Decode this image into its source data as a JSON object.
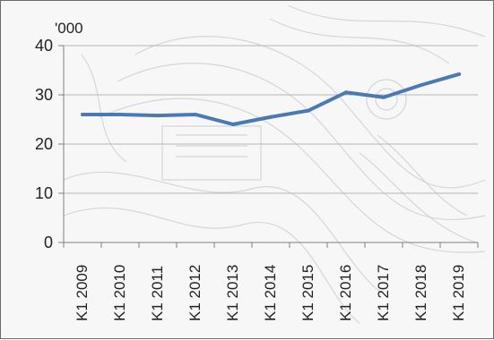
{
  "chart_data": {
    "type": "line",
    "title": "",
    "unit_label": "'000",
    "xlabel": "",
    "ylabel": "",
    "ylim": [
      0,
      40
    ],
    "yticks": [
      "0",
      "10",
      "20",
      "30",
      "40"
    ],
    "grid": true,
    "categories": [
      "K1 2009",
      "K1 2010",
      "K1 2011",
      "K1 2012",
      "K1 2013",
      "K1 2014",
      "K1 2015",
      "K1 2016",
      "K1 2017",
      "K1 2018",
      "K1 2019"
    ],
    "series": [
      {
        "values": [
          26,
          26,
          25.8,
          26,
          24,
          25.5,
          26.8,
          30.5,
          29.5,
          32,
          34.2
        ]
      }
    ],
    "colors": {
      "line": "#4a7ab5",
      "grid": "#b5b5b5",
      "axis": "#7f7f7f"
    }
  }
}
